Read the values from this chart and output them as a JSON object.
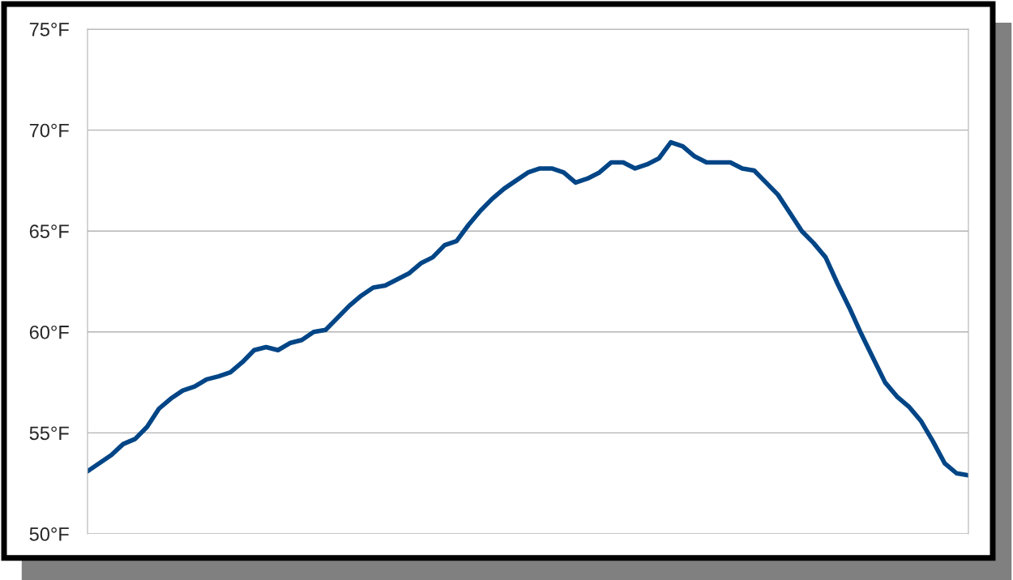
{
  "chart_data": {
    "type": "line",
    "categories": [
      null,
      null,
      null,
      null,
      null,
      null,
      null,
      null,
      null,
      null,
      null,
      null,
      null,
      null,
      null,
      null,
      null,
      null,
      null,
      null,
      null,
      null,
      null,
      null,
      null,
      null,
      null,
      null,
      null,
      null,
      null,
      null,
      null,
      null,
      null,
      null,
      null,
      null,
      null,
      null,
      null,
      null,
      null,
      null,
      null,
      null,
      null,
      null,
      null,
      null,
      null,
      null,
      null,
      null,
      null,
      null,
      null,
      null,
      null,
      null,
      null,
      null,
      null,
      null,
      null,
      null,
      null,
      null,
      null,
      null,
      null,
      null,
      null,
      null,
      null
    ],
    "series": [
      {
        "color": "#004586",
        "values": [
          53.1,
          53.5,
          53.9,
          54.45,
          54.7,
          55.3,
          56.2,
          56.7,
          57.1,
          57.3,
          57.65,
          57.8,
          58.0,
          58.5,
          59.1,
          59.25,
          59.1,
          59.45,
          59.6,
          60.0,
          60.1,
          60.7,
          61.3,
          61.8,
          62.2,
          62.3,
          62.6,
          62.9,
          63.4,
          63.7,
          64.3,
          64.5,
          65.3,
          66.0,
          66.6,
          67.1,
          67.5,
          67.9,
          68.1,
          68.1,
          67.9,
          67.4,
          67.6,
          67.9,
          68.4,
          68.4,
          68.1,
          68.3,
          68.6,
          69.4,
          69.2,
          68.7,
          68.4,
          68.4,
          68.4,
          68.1,
          68.0,
          67.4,
          66.8,
          65.9,
          65.0,
          64.4,
          63.7,
          62.4,
          61.2,
          59.9,
          58.7,
          57.5,
          56.8,
          56.3,
          55.6,
          54.6,
          53.5,
          53.0,
          52.9
        ]
      }
    ],
    "ylim": [
      50,
      75
    ],
    "yticks": [
      {
        "value": 50,
        "label": "50°F"
      },
      {
        "value": 55,
        "label": "55°F"
      },
      {
        "value": 60,
        "label": "60°F"
      },
      {
        "value": 65,
        "label": "65°F"
      },
      {
        "value": 70,
        "label": "70°F"
      },
      {
        "value": 75,
        "label": "75°F"
      }
    ],
    "grid": "y",
    "legend": false,
    "marker": "none",
    "line_style": "solid"
  }
}
